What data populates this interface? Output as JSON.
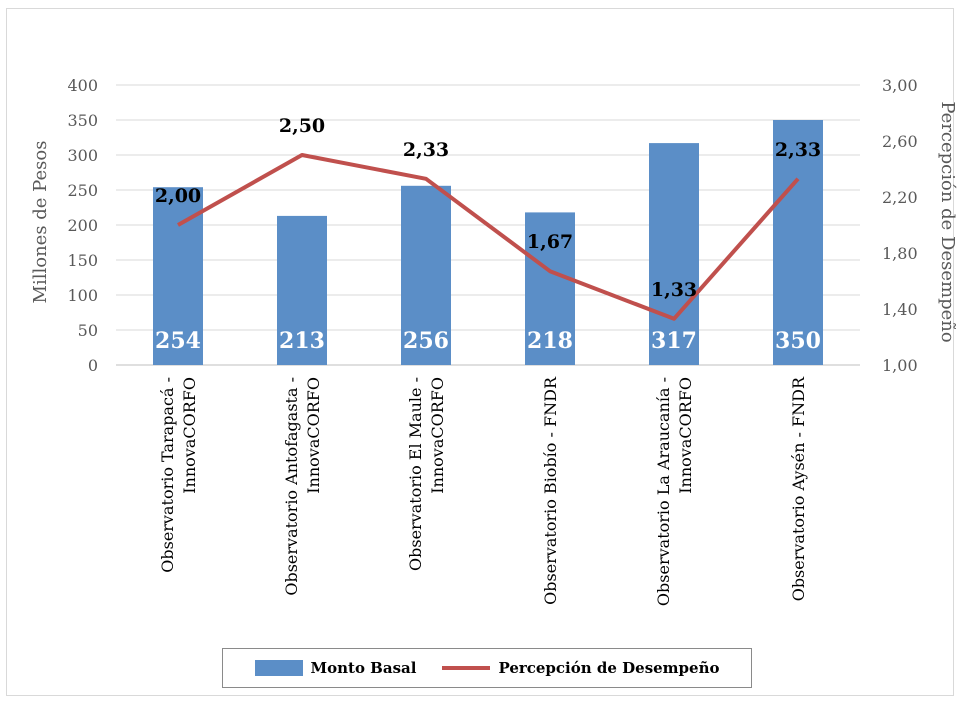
{
  "colors": {
    "bar": "#5b8ec7",
    "line": "#c0504d",
    "grid": "#d9d9d9"
  },
  "chart_data": {
    "type": "bar",
    "categories": [
      [
        "Observatorio Tarapacá -",
        "InnovaCORFO"
      ],
      [
        "Observatorio Antofagasta -",
        "InnovaCORFO"
      ],
      [
        "Observatorio El Maule -",
        "InnovaCORFO"
      ],
      [
        "Observatorio Biobío - FNDR"
      ],
      [
        "Observatorio La Araucanía -",
        "InnovaCORFO"
      ],
      [
        "Observatorio Aysén - FNDR"
      ]
    ],
    "series": [
      {
        "name": "Monto Basal",
        "type": "bar",
        "axis": "left",
        "values": [
          254,
          213,
          256,
          218,
          317,
          350
        ],
        "labels": [
          "254",
          "213",
          "256",
          "218",
          "317",
          "350"
        ]
      },
      {
        "name": "Percepción de Desempeño",
        "type": "line",
        "axis": "right",
        "values": [
          2.0,
          2.5,
          2.33,
          1.67,
          1.33,
          2.33
        ],
        "labels": [
          "2,00",
          "2,50",
          "2,33",
          "1,67",
          "1,33",
          "2,33"
        ]
      }
    ],
    "ylabel": "Millones de Pesos",
    "y2label": "Percepción de Desempeño",
    "ylim": [
      0,
      400
    ],
    "y2lim": [
      1.0,
      3.0
    ],
    "yticks": [
      "0",
      "50",
      "100",
      "150",
      "200",
      "250",
      "300",
      "350",
      "400"
    ],
    "y2ticks": [
      "1,00",
      "1,40",
      "1,80",
      "2,20",
      "2,60",
      "3,00"
    ],
    "grid": true,
    "legend_position": "bottom"
  }
}
